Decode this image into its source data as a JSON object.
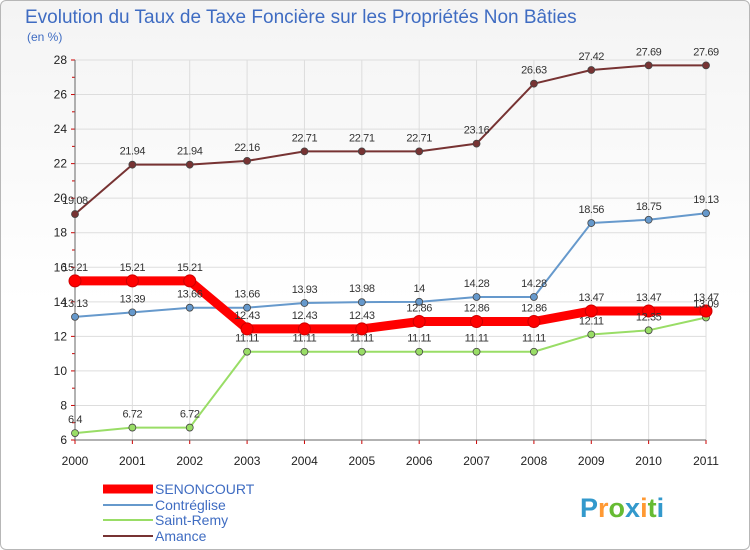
{
  "chart_data": {
    "type": "line",
    "title": "Evolution du Taux de Taxe Foncière sur les Propriétés Non Bâties",
    "subtitle": "(en %)",
    "xlabel": "",
    "ylabel": "",
    "x": [
      "2000",
      "2001",
      "2002",
      "2003",
      "2004",
      "2005",
      "2006",
      "2007",
      "2008",
      "2009",
      "2010",
      "2011"
    ],
    "ylim": [
      6,
      28
    ],
    "yticks": [
      "6",
      "8",
      "10",
      "12",
      "14",
      "16",
      "18",
      "20",
      "22",
      "24",
      "26",
      "28"
    ],
    "grid": true,
    "legend_position": "bottom-left",
    "series": [
      {
        "name": "SENONCOURT",
        "color": "#ff0000",
        "values": [
          15.21,
          15.21,
          15.21,
          12.43,
          12.43,
          12.43,
          12.86,
          12.86,
          12.86,
          13.47,
          13.47,
          13.47
        ],
        "labels": [
          "15.21",
          "15.21",
          "15.21",
          "12.43",
          "12.43",
          "12.43",
          "12.86",
          "12.86",
          "12.86",
          "13.47",
          "13.47",
          "13.47"
        ]
      },
      {
        "name": "Contréglise",
        "color": "#6699cc",
        "values": [
          13.13,
          13.39,
          13.66,
          13.66,
          13.93,
          13.98,
          14.0,
          14.28,
          14.28,
          18.56,
          18.75,
          19.13
        ],
        "labels": [
          "13.13",
          "13.39",
          "13.66",
          "13.66",
          "13.93",
          "13.98",
          "14",
          "14.28",
          "14.28",
          "18.56",
          "18.75",
          "19.13"
        ]
      },
      {
        "name": "Saint-Remy",
        "color": "#99dd66",
        "values": [
          6.4,
          6.72,
          6.72,
          11.11,
          11.11,
          11.11,
          11.11,
          11.11,
          11.11,
          12.11,
          12.35,
          13.09
        ],
        "labels": [
          "6.4",
          "6.72",
          "6.72",
          "11.11",
          "11.11",
          "11.11",
          "11.11",
          "11.11",
          "11.11",
          "12.11",
          "12.35",
          "13.09"
        ]
      },
      {
        "name": "Amance",
        "color": "#773333",
        "values": [
          19.08,
          21.94,
          21.94,
          22.16,
          22.71,
          22.71,
          22.71,
          23.16,
          26.63,
          27.42,
          27.69,
          27.69
        ],
        "labels": [
          "19.08",
          "21.94",
          "21.94",
          "22.16",
          "22.71",
          "22.71",
          "22.71",
          "23.16",
          "26.63",
          "27.42",
          "27.69",
          "27.69"
        ]
      }
    ]
  },
  "logo": {
    "text": "Proxiti",
    "letters": [
      "P",
      "r",
      "o",
      "x",
      "i",
      "t",
      "i"
    ],
    "colors": [
      "#3399cc",
      "#ff9933",
      "#66bb33",
      "#3399cc",
      "#ff9933",
      "#66bb33",
      "#3399cc"
    ]
  },
  "colors": {
    "title": "#3f6cc2",
    "grid": "#dddddd",
    "axis": "#666666"
  }
}
